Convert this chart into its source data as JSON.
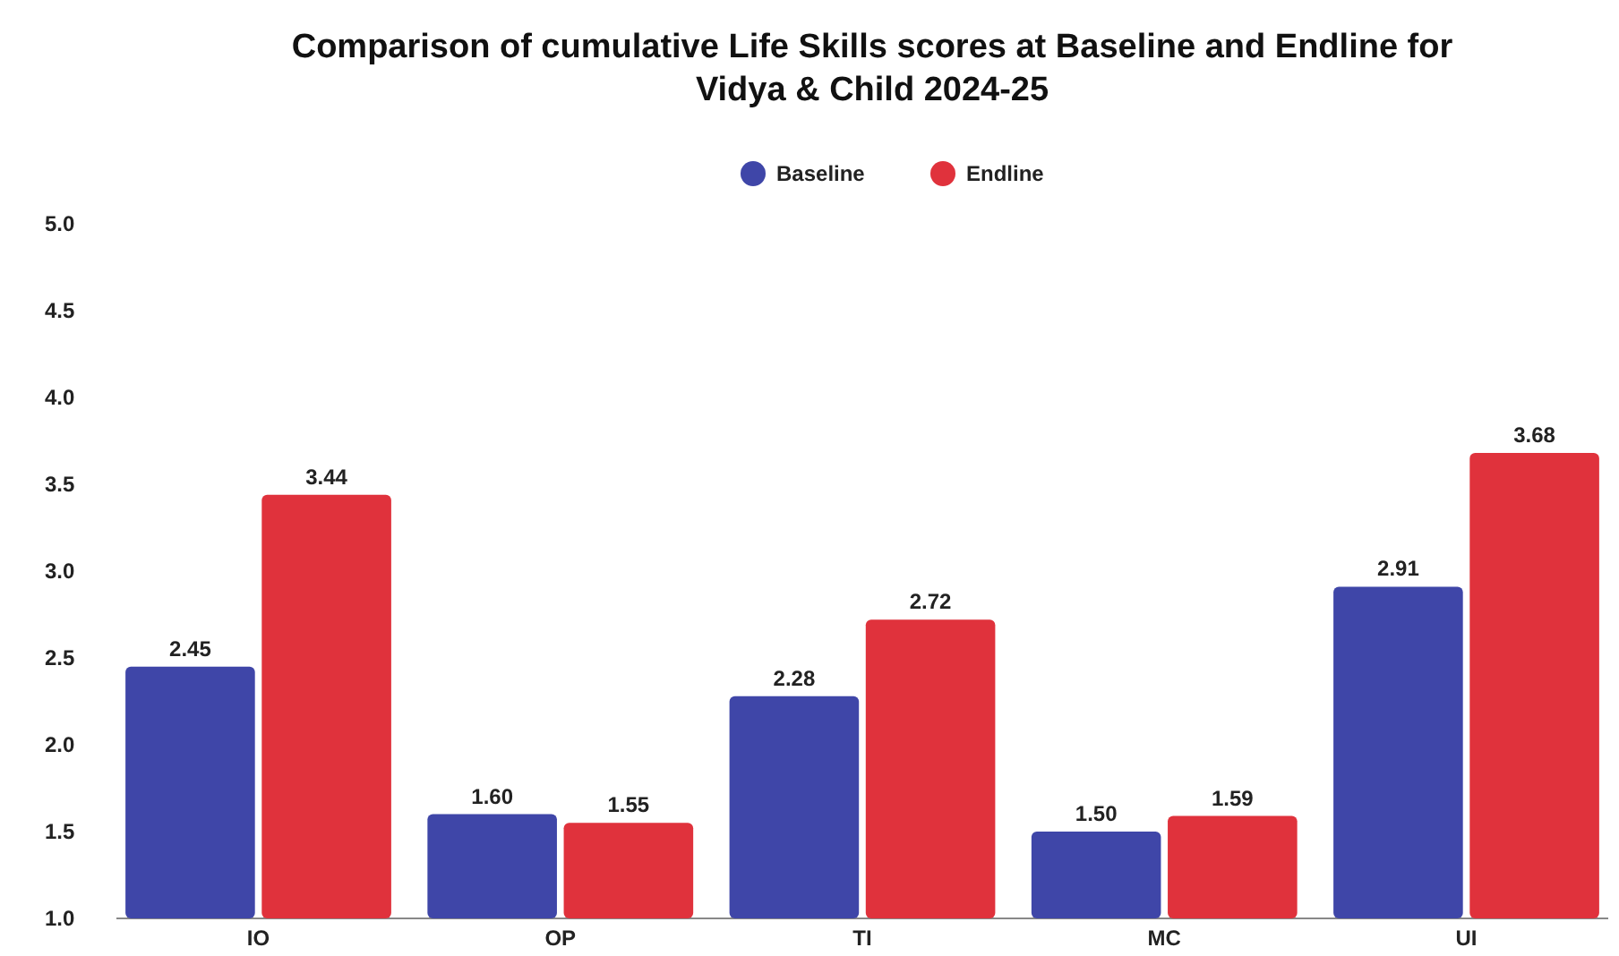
{
  "chart_data": {
    "type": "bar",
    "title": "Comparison of cumulative Life Skills scores at Baseline and Endline for Vidya & Child 2024-25",
    "categories": [
      "IO",
      "OP",
      "TI",
      "MC",
      "UI"
    ],
    "series": [
      {
        "name": "Baseline",
        "color": "#3f46a8",
        "values": [
          2.45,
          1.6,
          2.28,
          1.5,
          2.91
        ],
        "value_labels": [
          "2.45",
          "1.60",
          "2.28",
          "1.50",
          "2.91"
        ]
      },
      {
        "name": "Endline",
        "color": "#e0323c",
        "values": [
          3.44,
          1.55,
          2.72,
          1.59,
          3.68
        ],
        "value_labels": [
          "3.44",
          "1.55",
          "2.72",
          "1.59",
          "3.68"
        ]
      }
    ],
    "ylim": [
      1.0,
      5.0
    ],
    "yticks": [
      {
        "value": 1.0,
        "label": "1.0"
      },
      {
        "value": 1.5,
        "label": "1.5"
      },
      {
        "value": 2.0,
        "label": "2.0"
      },
      {
        "value": 2.5,
        "label": "2.5"
      },
      {
        "value": 3.0,
        "label": "3.0"
      },
      {
        "value": 3.5,
        "label": "3.5"
      },
      {
        "value": 4.0,
        "label": "4.0"
      },
      {
        "value": 4.5,
        "label": "4.5"
      },
      {
        "value": 5.0,
        "label": "5.0"
      }
    ],
    "grid": false,
    "legend": "top"
  }
}
